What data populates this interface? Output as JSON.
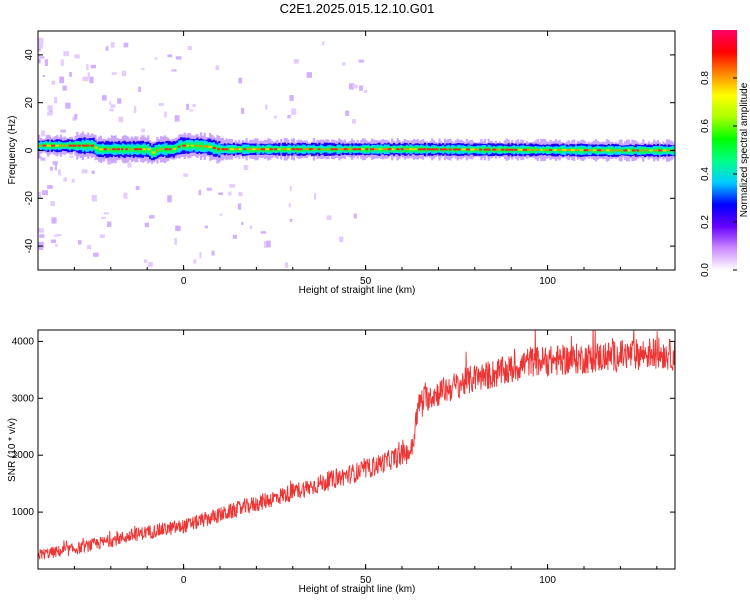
{
  "figure_title": "C2E1.2025.015.12.10.G01",
  "chart_data": [
    {
      "type": "heatmap",
      "xlabel": "Height of straight line (km)",
      "ylabel": "Frequency (Hz)",
      "xlim": [
        -40,
        135
      ],
      "ylim": [
        -50,
        50
      ],
      "xticks": [
        0,
        50,
        100
      ],
      "yticks": [
        -40,
        -20,
        0,
        20,
        40
      ],
      "grid": false,
      "ridge": {
        "description_free": true,
        "x": [
          -40,
          -30,
          -25,
          -24,
          -10,
          -9,
          -7,
          -3,
          -1,
          3,
          7,
          9,
          10,
          60,
          90,
          120,
          135
        ],
        "y": [
          2,
          2,
          2,
          0.5,
          0.5,
          -1,
          0.5,
          0.5,
          2,
          2,
          1.5,
          0.5,
          0.5,
          0.5,
          0.3,
          0,
          0
        ]
      },
      "colorbar": {
        "label": "Normalized spectral amplitude",
        "range": [
          0,
          1
        ],
        "ticks": [
          "0.0",
          "0.2",
          "0.4",
          "0.6",
          "0.8"
        ],
        "colors": [
          "#ffffff",
          "#cc88ff",
          "#6600ff",
          "#0000ff",
          "#00ccff",
          "#00ff88",
          "#00ff00",
          "#aaff00",
          "#ffff00",
          "#ff8800",
          "#ff0000",
          "#ff0066"
        ]
      }
    },
    {
      "type": "line",
      "xlabel": "Height of straight line (km)",
      "ylabel": "SNR (10 * v/v)",
      "xlim": [
        -40,
        135
      ],
      "ylim": [
        0,
        4200
      ],
      "xticks": [
        0,
        50,
        100
      ],
      "yticks": [
        1000,
        2000,
        3000,
        4000
      ],
      "grid": false,
      "series": [
        {
          "color": "#ee3333",
          "x": [
            -40,
            -30,
            -20,
            -10,
            0,
            10,
            20,
            30,
            40,
            50,
            60,
            62,
            63,
            64,
            65,
            70,
            80,
            90,
            95,
            100,
            110,
            120,
            130,
            135
          ],
          "values": [
            250,
            350,
            500,
            650,
            750,
            950,
            1150,
            1350,
            1550,
            1750,
            2000,
            2050,
            2150,
            2700,
            2950,
            3100,
            3350,
            3500,
            3650,
            3650,
            3700,
            3750,
            3800,
            3750
          ]
        }
      ]
    }
  ]
}
